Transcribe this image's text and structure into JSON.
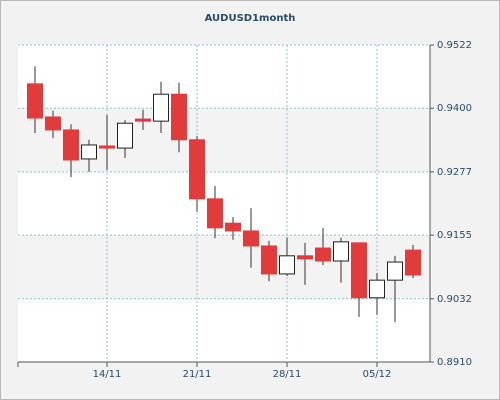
{
  "chart_data": {
    "type": "candlestick",
    "title": "AUDUSD1month",
    "categories": [
      null,
      null,
      null,
      null,
      "14/11",
      null,
      null,
      null,
      null,
      "21/11",
      null,
      null,
      null,
      null,
      "28/11",
      null,
      null,
      null,
      null,
      "05/12",
      null,
      null
    ],
    "open": [
      0.9447,
      0.9383,
      0.9358,
      0.9302,
      0.9327,
      0.9323,
      0.9379,
      0.9375,
      0.9427,
      0.9339,
      0.9225,
      0.9178,
      0.9163,
      0.9134,
      0.908,
      0.9115,
      0.913,
      0.9105,
      0.914,
      0.9034,
      0.9068,
      0.9126
    ],
    "high": [
      0.9481,
      0.9395,
      0.9369,
      0.9339,
      0.9387,
      0.9377,
      0.9397,
      0.9451,
      0.9449,
      0.9346,
      0.925,
      0.919,
      0.9207,
      0.9144,
      0.915,
      0.914,
      0.9169,
      0.915,
      0.914,
      0.9082,
      0.9115,
      0.9136
    ],
    "low": [
      0.9352,
      0.9342,
      0.9267,
      0.9277,
      0.9281,
      0.9304,
      0.9358,
      0.9352,
      0.9315,
      0.92,
      0.9149,
      0.9146,
      0.9092,
      0.9066,
      0.9076,
      0.9059,
      0.9097,
      0.9063,
      0.8997,
      0.9001,
      0.8987,
      0.9072
    ],
    "close": [
      0.9381,
      0.9358,
      0.93,
      0.9329,
      0.9323,
      0.9371,
      0.9375,
      0.9427,
      0.9339,
      0.9225,
      0.9169,
      0.9163,
      0.9134,
      0.908,
      0.9115,
      0.9109,
      0.9105,
      0.9142,
      0.9034,
      0.9068,
      0.9103,
      0.9078
    ],
    "up_color": "#ffffff",
    "down_color": "#e23b3b",
    "ylim": [
      0.891,
      0.9522
    ],
    "yticks": [
      {
        "value": 0.891,
        "label": "0.8910"
      },
      0.9032,
      0.9155,
      0.9277,
      {
        "value": 0.94,
        "label": "0.9400"
      },
      0.9522
    ],
    "grid": true
  }
}
